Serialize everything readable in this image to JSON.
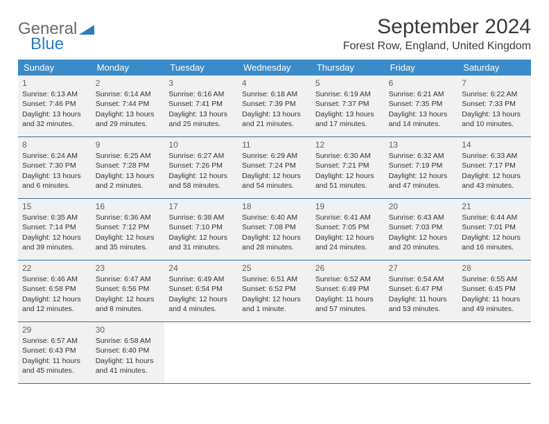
{
  "logo": {
    "text1": "General",
    "text2": "Blue"
  },
  "title": "September 2024",
  "location": "Forest Row, England, United Kingdom",
  "header_bg": "#3b8bc9",
  "cell_bg": "#f1f1f1",
  "border_color": "#2f6fa3",
  "weekdays": [
    "Sunday",
    "Monday",
    "Tuesday",
    "Wednesday",
    "Thursday",
    "Friday",
    "Saturday"
  ],
  "weeks": [
    [
      {
        "n": "1",
        "sr": "6:13 AM",
        "ss": "7:46 PM",
        "dl": "13 hours and 32 minutes."
      },
      {
        "n": "2",
        "sr": "6:14 AM",
        "ss": "7:44 PM",
        "dl": "13 hours and 29 minutes."
      },
      {
        "n": "3",
        "sr": "6:16 AM",
        "ss": "7:41 PM",
        "dl": "13 hours and 25 minutes."
      },
      {
        "n": "4",
        "sr": "6:18 AM",
        "ss": "7:39 PM",
        "dl": "13 hours and 21 minutes."
      },
      {
        "n": "5",
        "sr": "6:19 AM",
        "ss": "7:37 PM",
        "dl": "13 hours and 17 minutes."
      },
      {
        "n": "6",
        "sr": "6:21 AM",
        "ss": "7:35 PM",
        "dl": "13 hours and 14 minutes."
      },
      {
        "n": "7",
        "sr": "6:22 AM",
        "ss": "7:33 PM",
        "dl": "13 hours and 10 minutes."
      }
    ],
    [
      {
        "n": "8",
        "sr": "6:24 AM",
        "ss": "7:30 PM",
        "dl": "13 hours and 6 minutes."
      },
      {
        "n": "9",
        "sr": "6:25 AM",
        "ss": "7:28 PM",
        "dl": "13 hours and 2 minutes."
      },
      {
        "n": "10",
        "sr": "6:27 AM",
        "ss": "7:26 PM",
        "dl": "12 hours and 58 minutes."
      },
      {
        "n": "11",
        "sr": "6:29 AM",
        "ss": "7:24 PM",
        "dl": "12 hours and 54 minutes."
      },
      {
        "n": "12",
        "sr": "6:30 AM",
        "ss": "7:21 PM",
        "dl": "12 hours and 51 minutes."
      },
      {
        "n": "13",
        "sr": "6:32 AM",
        "ss": "7:19 PM",
        "dl": "12 hours and 47 minutes."
      },
      {
        "n": "14",
        "sr": "6:33 AM",
        "ss": "7:17 PM",
        "dl": "12 hours and 43 minutes."
      }
    ],
    [
      {
        "n": "15",
        "sr": "6:35 AM",
        "ss": "7:14 PM",
        "dl": "12 hours and 39 minutes."
      },
      {
        "n": "16",
        "sr": "6:36 AM",
        "ss": "7:12 PM",
        "dl": "12 hours and 35 minutes."
      },
      {
        "n": "17",
        "sr": "6:38 AM",
        "ss": "7:10 PM",
        "dl": "12 hours and 31 minutes."
      },
      {
        "n": "18",
        "sr": "6:40 AM",
        "ss": "7:08 PM",
        "dl": "12 hours and 28 minutes."
      },
      {
        "n": "19",
        "sr": "6:41 AM",
        "ss": "7:05 PM",
        "dl": "12 hours and 24 minutes."
      },
      {
        "n": "20",
        "sr": "6:43 AM",
        "ss": "7:03 PM",
        "dl": "12 hours and 20 minutes."
      },
      {
        "n": "21",
        "sr": "6:44 AM",
        "ss": "7:01 PM",
        "dl": "12 hours and 16 minutes."
      }
    ],
    [
      {
        "n": "22",
        "sr": "6:46 AM",
        "ss": "6:58 PM",
        "dl": "12 hours and 12 minutes."
      },
      {
        "n": "23",
        "sr": "6:47 AM",
        "ss": "6:56 PM",
        "dl": "12 hours and 8 minutes."
      },
      {
        "n": "24",
        "sr": "6:49 AM",
        "ss": "6:54 PM",
        "dl": "12 hours and 4 minutes."
      },
      {
        "n": "25",
        "sr": "6:51 AM",
        "ss": "6:52 PM",
        "dl": "12 hours and 1 minute."
      },
      {
        "n": "26",
        "sr": "6:52 AM",
        "ss": "6:49 PM",
        "dl": "11 hours and 57 minutes."
      },
      {
        "n": "27",
        "sr": "6:54 AM",
        "ss": "6:47 PM",
        "dl": "11 hours and 53 minutes."
      },
      {
        "n": "28",
        "sr": "6:55 AM",
        "ss": "6:45 PM",
        "dl": "11 hours and 49 minutes."
      }
    ],
    [
      {
        "n": "29",
        "sr": "6:57 AM",
        "ss": "6:43 PM",
        "dl": "11 hours and 45 minutes."
      },
      {
        "n": "30",
        "sr": "6:58 AM",
        "ss": "6:40 PM",
        "dl": "11 hours and 41 minutes."
      },
      null,
      null,
      null,
      null,
      null
    ]
  ],
  "labels": {
    "sunrise": "Sunrise:",
    "sunset": "Sunset:",
    "daylight": "Daylight:"
  }
}
